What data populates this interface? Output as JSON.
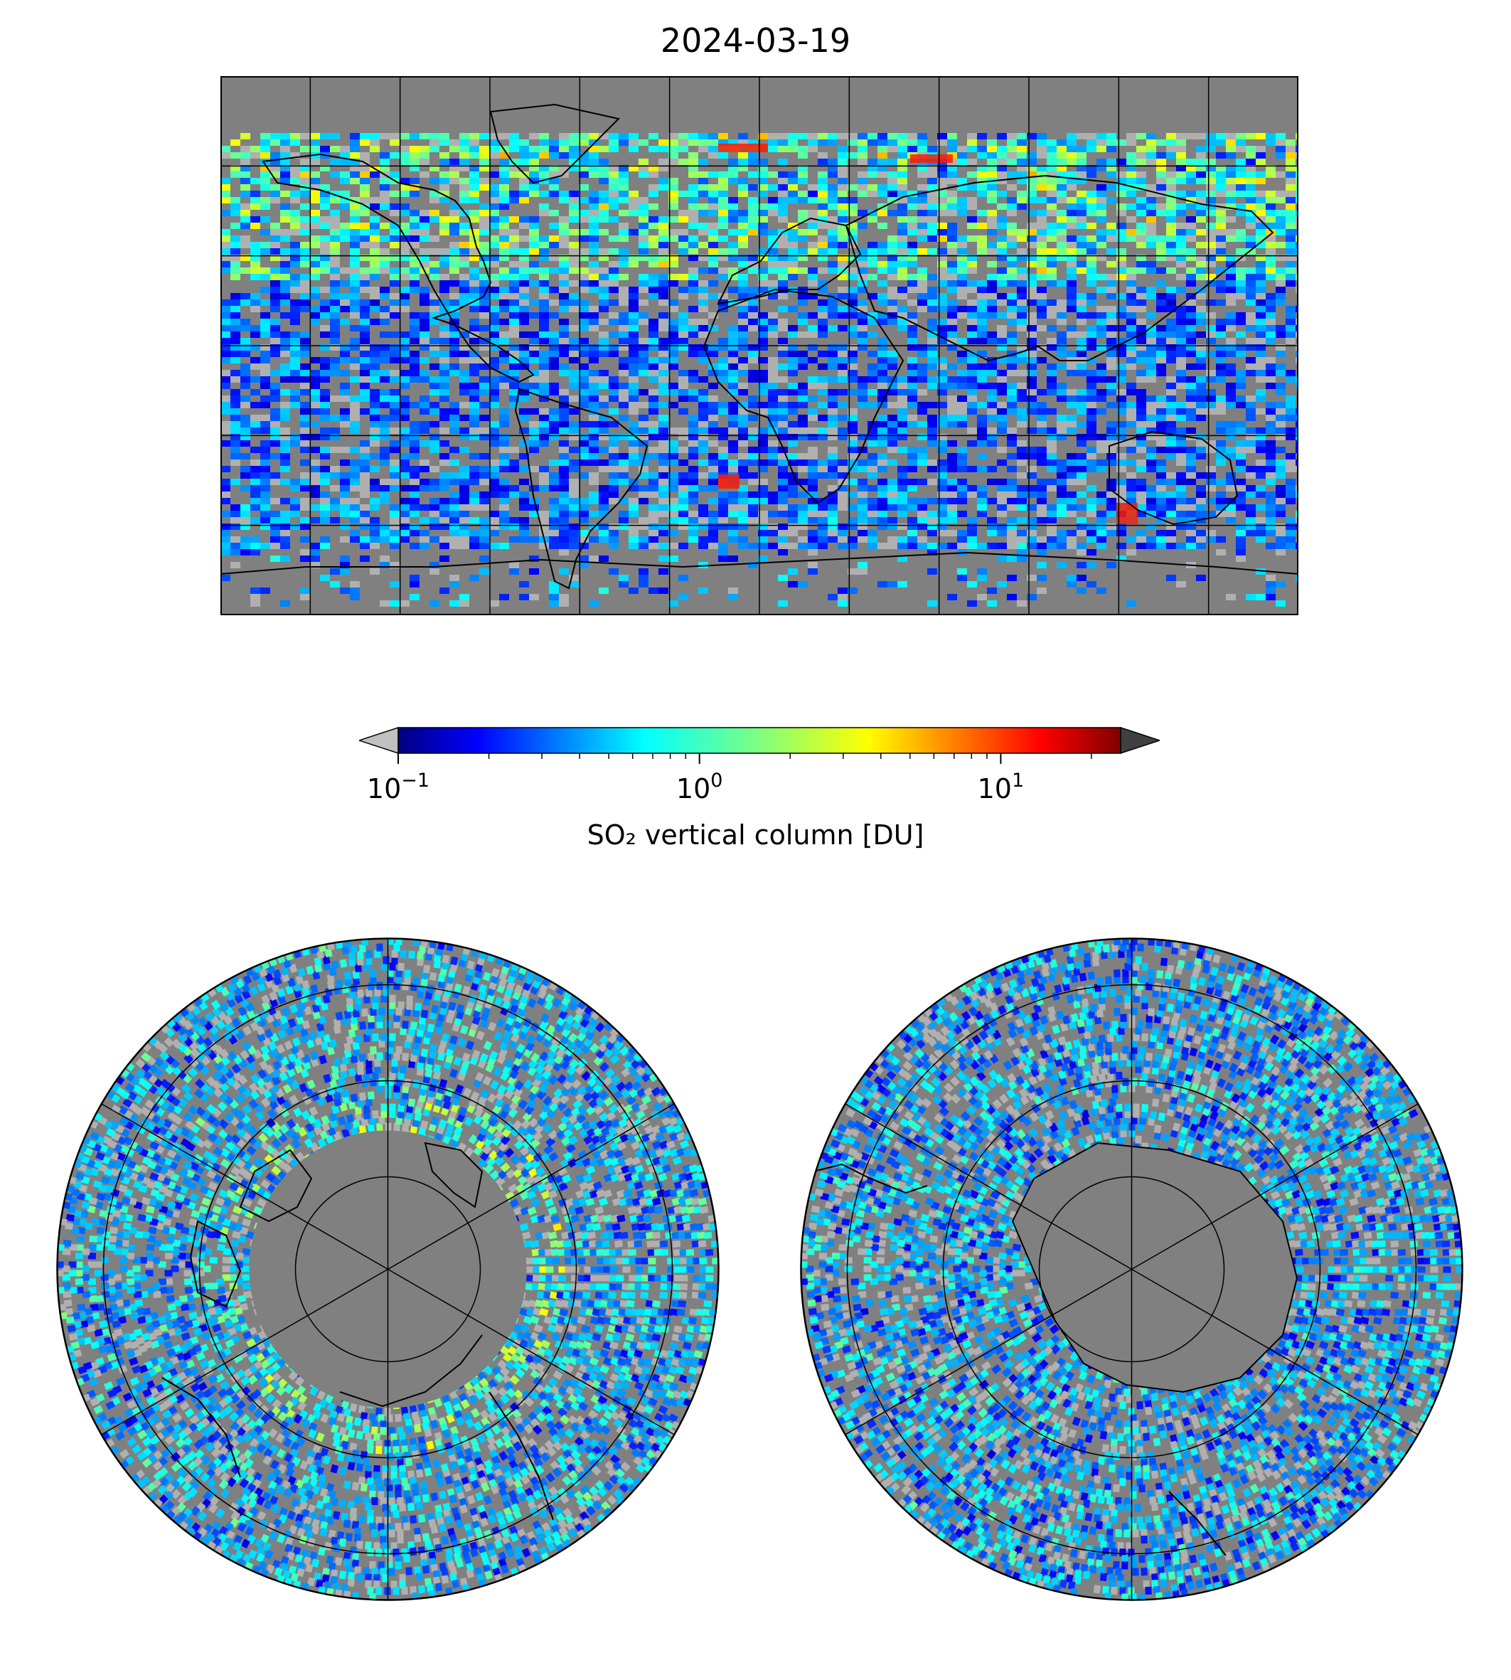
{
  "title": "2024-03-19",
  "colorbar": {
    "label": "SO₂ vertical column [DU]",
    "scale": "log",
    "range": [
      0.1,
      25
    ],
    "ticks": [
      {
        "value": 0.1,
        "base": "10",
        "exp": "−1"
      },
      {
        "value": 1,
        "base": "10",
        "exp": "0"
      },
      {
        "value": 10,
        "base": "10",
        "exp": "1"
      }
    ],
    "colormap": "jet",
    "extend": "both",
    "under_color": "#c0c0c0",
    "over_color": "#404040"
  },
  "colors": {
    "no_data": "#808080",
    "low_values": "#b0b0b0",
    "coastline": "#000000",
    "gridline": "#000000"
  },
  "maps": {
    "global": {
      "projection": "plate-carree",
      "grid": "30° meridians, 30° parallels"
    },
    "north_polar": {
      "projection": "north-polar-stereographic"
    },
    "south_polar": {
      "projection": "south-polar-stereographic"
    }
  }
}
